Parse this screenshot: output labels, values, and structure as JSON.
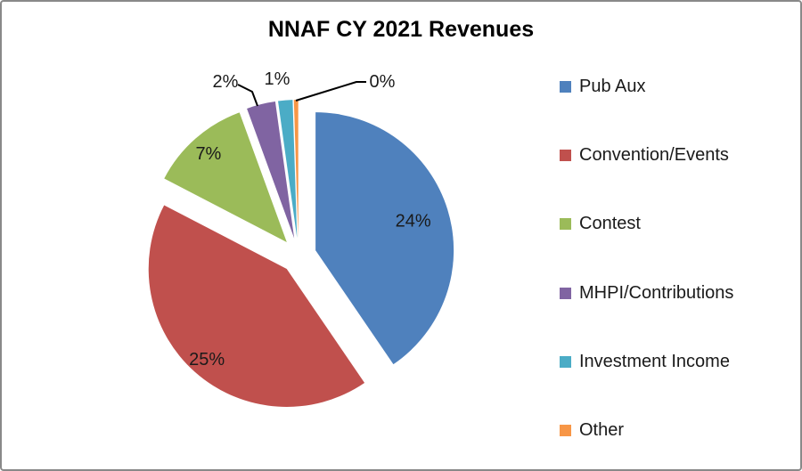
{
  "window": {
    "background": "#ffffff",
    "frame_border_color": "#898989"
  },
  "chart_data": {
    "type": "pie",
    "title": "NNAF CY 2021 Revenues",
    "legend_position": "right",
    "exploded": true,
    "slices": [
      {
        "label": "Pub Aux",
        "percent_label": "24%",
        "value": 24,
        "color": "#4F81BD"
      },
      {
        "label": "Convention/Events",
        "percent_label": "25%",
        "value": 25,
        "color": "#C0504D"
      },
      {
        "label": "Contest",
        "percent_label": "7%",
        "value": 7,
        "color": "#9BBB59"
      },
      {
        "label": "MHPI/Contributions",
        "percent_label": "2%",
        "value": 2,
        "color": "#8064A2"
      },
      {
        "label": "Investment Income",
        "percent_label": "1%",
        "value": 1,
        "color": "#4BACC6"
      },
      {
        "label": "Other",
        "percent_label": "0%",
        "value": 0.3,
        "color": "#F79646"
      }
    ]
  }
}
